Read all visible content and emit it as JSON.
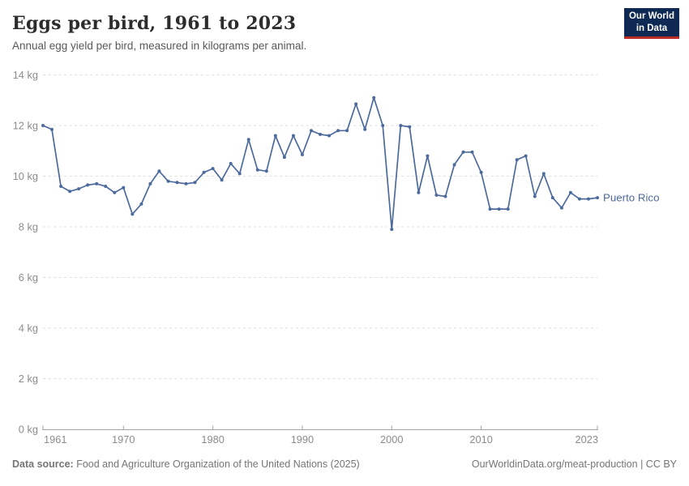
{
  "header": {
    "title": "Eggs per bird, 1961 to 2023",
    "subtitle": "Annual egg yield per bird, measured in kilograms per animal."
  },
  "logo": {
    "line1": "Our World",
    "line2": "in Data"
  },
  "chart_data": {
    "type": "line",
    "title": "Eggs per bird, 1961 to 2023",
    "ylabel": "kilograms per animal",
    "ylim": [
      0,
      14
    ],
    "ytick_step": 2,
    "ytick_suffix": " kg",
    "xticks": [
      1961,
      1970,
      1980,
      1990,
      2000,
      2010,
      2023
    ],
    "grid": "horizontal-dashed",
    "legend_position": "end-of-line-label",
    "x": [
      1961,
      1962,
      1963,
      1964,
      1965,
      1966,
      1967,
      1968,
      1969,
      1970,
      1971,
      1972,
      1973,
      1974,
      1975,
      1976,
      1977,
      1978,
      1979,
      1980,
      1981,
      1982,
      1983,
      1984,
      1985,
      1986,
      1987,
      1988,
      1989,
      1990,
      1991,
      1992,
      1993,
      1994,
      1995,
      1996,
      1997,
      1998,
      1999,
      2000,
      2001,
      2002,
      2003,
      2004,
      2005,
      2006,
      2007,
      2008,
      2009,
      2010,
      2011,
      2012,
      2013,
      2014,
      2015,
      2016,
      2017,
      2018,
      2019,
      2020,
      2021,
      2022,
      2023
    ],
    "series": [
      {
        "name": "Puerto Rico",
        "color": "#4c6a9c",
        "values": [
          12,
          11.85,
          9.6,
          9.4,
          9.5,
          9.65,
          9.7,
          9.6,
          9.35,
          9.55,
          8.5,
          8.9,
          9.7,
          10.2,
          9.8,
          9.75,
          9.7,
          9.75,
          10.15,
          10.3,
          9.85,
          10.5,
          10.1,
          11.45,
          10.25,
          10.2,
          11.6,
          10.75,
          11.6,
          10.85,
          11.8,
          11.65,
          11.6,
          11.8,
          11.8,
          12.85,
          11.85,
          13.1,
          12,
          7.9,
          12,
          11.95,
          9.35,
          10.8,
          9.25,
          9.2,
          10.45,
          10.95,
          10.95,
          10.15,
          8.7,
          8.7,
          8.7,
          10.65,
          10.8,
          9.2,
          10.1,
          9.15,
          8.75,
          9.35,
          9.1,
          9.1,
          9.15
        ]
      }
    ]
  },
  "colors": {
    "series_blue": "#4c6a9c",
    "gridline": "#dedede",
    "axis": "#a3a3a3",
    "tick_label": "#8c8c8c",
    "logo_bg": "#0e2a54",
    "logo_stripe": "#be2d23",
    "background": "#ffffff"
  },
  "footer": {
    "source_label": "Data source:",
    "source_text": " Food and Agriculture Organization of the United Nations (2025)",
    "link": "OurWorldinData.org/meat-production",
    "separator": " | ",
    "license": "CC BY"
  }
}
